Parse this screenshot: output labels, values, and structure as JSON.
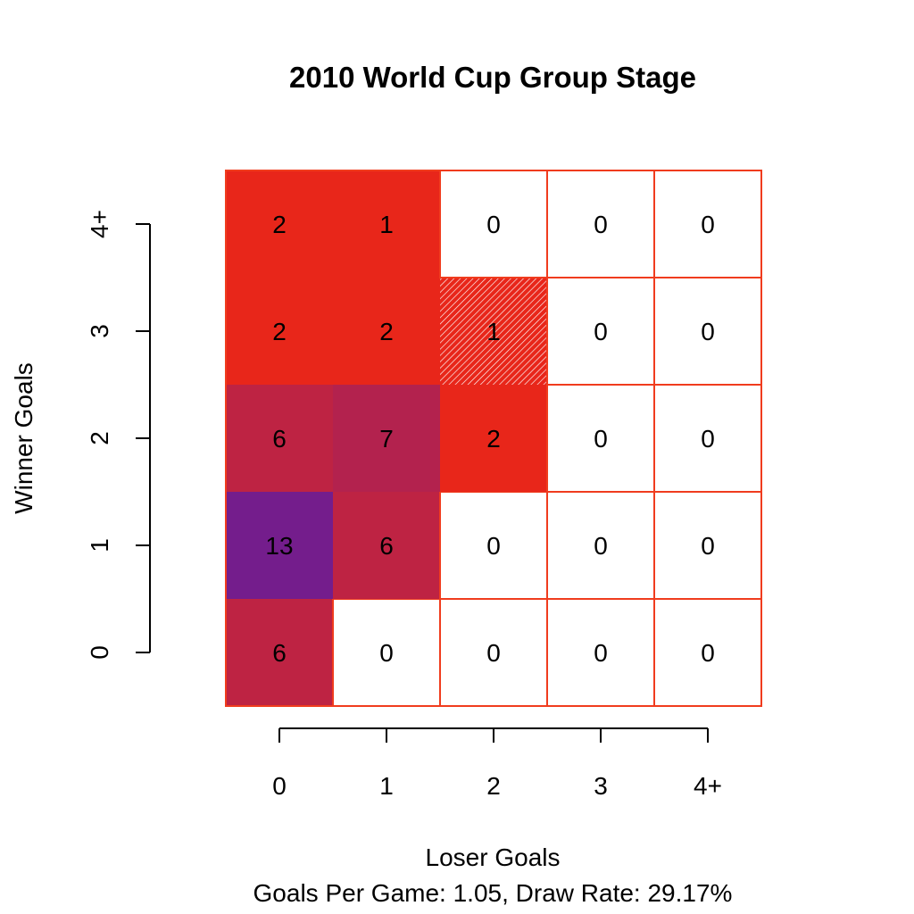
{
  "chart_data": {
    "type": "heatmap",
    "title": "2010 World Cup Group Stage",
    "xlabel": "Loser Goals",
    "ylabel": "Winner Goals",
    "subtitle": "Goals Per Game: 1.05, Draw Rate: 29.17%",
    "x_categories": [
      "0",
      "1",
      "2",
      "3",
      "4+"
    ],
    "y_categories": [
      "0",
      "1",
      "2",
      "3",
      "4+"
    ],
    "values": [
      [
        6,
        0,
        0,
        0,
        0
      ],
      [
        13,
        6,
        0,
        0,
        0
      ],
      [
        6,
        7,
        2,
        0,
        0
      ],
      [
        2,
        2,
        1,
        0,
        0
      ],
      [
        2,
        1,
        0,
        0,
        0
      ]
    ],
    "diagonal_hatched": true,
    "colors": {
      "low": "#e8261a",
      "high": "#741d8c",
      "zero": "#ffffff",
      "grid": "#f03c1e",
      "text": "#000000"
    }
  }
}
